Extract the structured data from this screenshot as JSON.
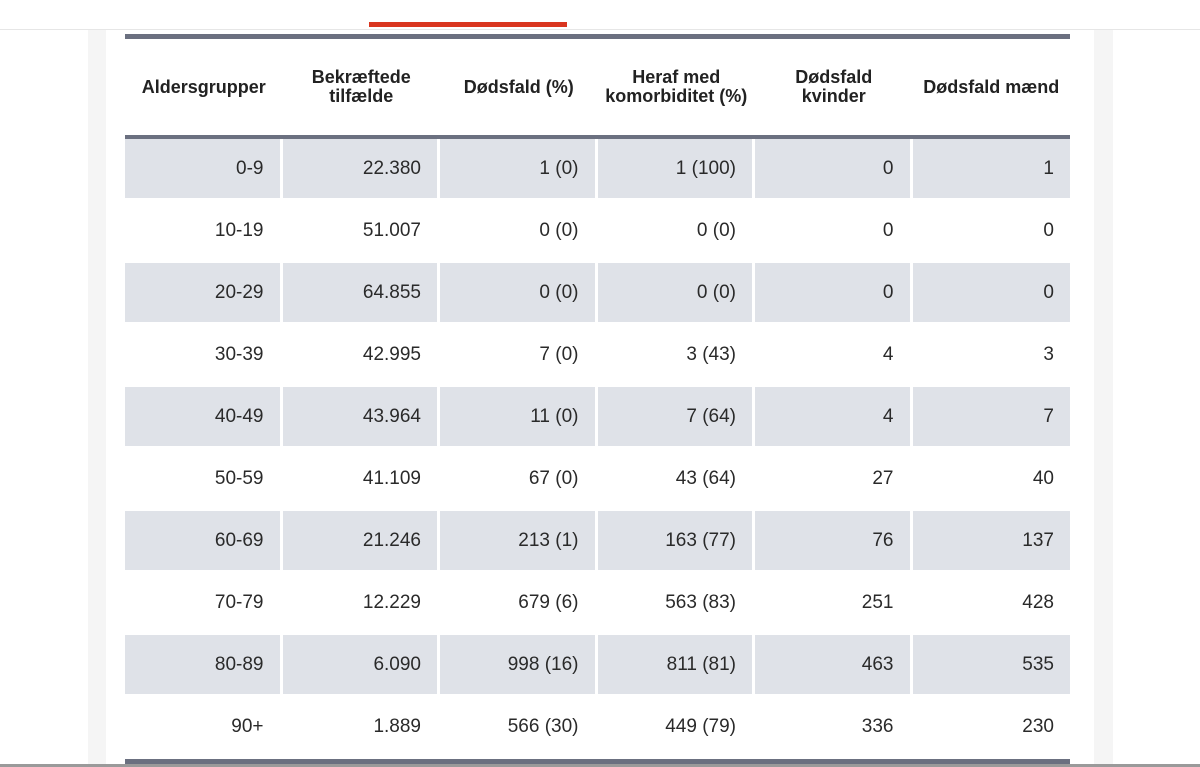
{
  "table": {
    "headers": [
      "Aldersgrupper",
      "Bekræftede tilfælde",
      "Dødsfald (%)",
      "Heraf med komorbiditet (%)",
      "Dødsfald kvinder",
      "Dødsfald mænd"
    ],
    "rows": [
      [
        "0-9",
        "22.380",
        "1 (0)",
        "1 (100)",
        "0",
        "1"
      ],
      [
        "10-19",
        "51.007",
        "0 (0)",
        "0 (0)",
        "0",
        "0"
      ],
      [
        "20-29",
        "64.855",
        "0 (0)",
        "0 (0)",
        "0",
        "0"
      ],
      [
        "30-39",
        "42.995",
        "7 (0)",
        "3 (43)",
        "4",
        "3"
      ],
      [
        "40-49",
        "43.964",
        "11 (0)",
        "7 (64)",
        "4",
        "7"
      ],
      [
        "50-59",
        "41.109",
        "67 (0)",
        "43 (64)",
        "27",
        "40"
      ],
      [
        "60-69",
        "21.246",
        "213 (1)",
        "163 (77)",
        "76",
        "137"
      ],
      [
        "70-79",
        "12.229",
        "679 (6)",
        "563 (83)",
        "251",
        "428"
      ],
      [
        "80-89",
        "6.090",
        "998 (16)",
        "811 (81)",
        "463",
        "535"
      ],
      [
        "90+",
        "1.889",
        "566 (30)",
        "449 (79)",
        "336",
        "230"
      ]
    ]
  },
  "colors": {
    "accent": "#d9351f",
    "rule": "#6b7080",
    "row_shade": "#dfe2e8"
  }
}
